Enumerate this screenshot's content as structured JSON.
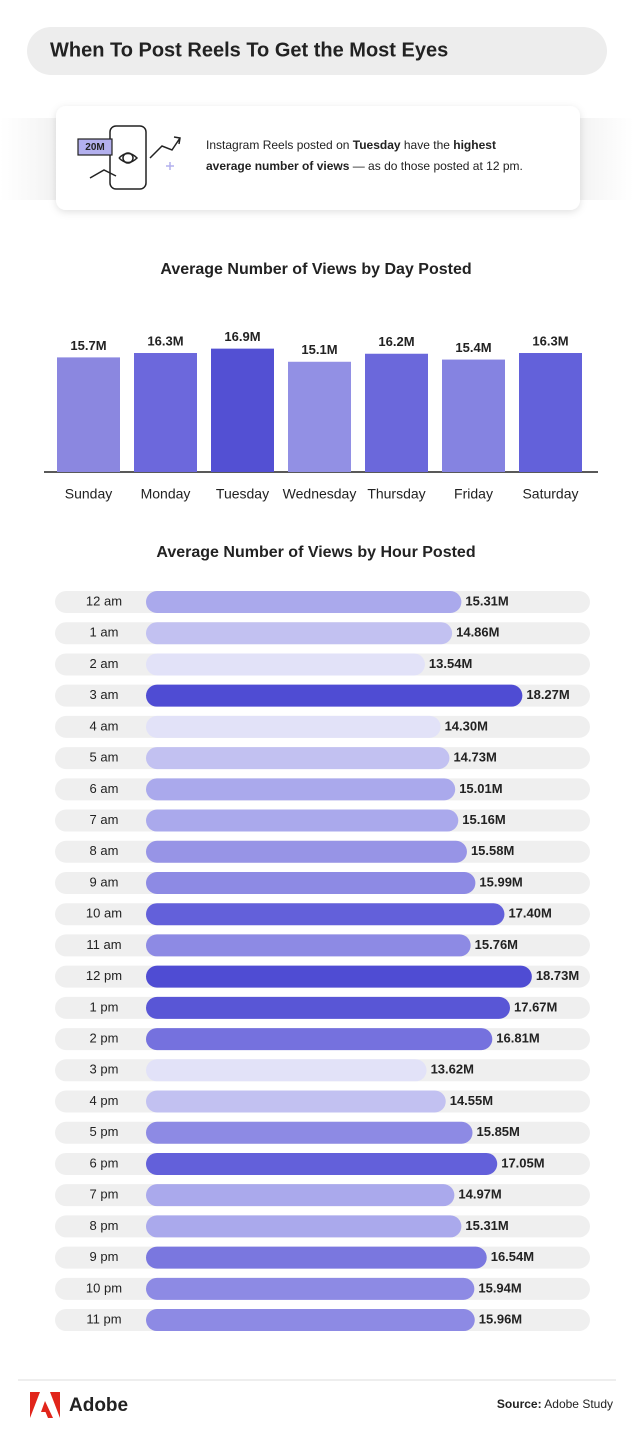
{
  "header": {
    "title": "When To Post Reels To Get the Most Eyes"
  },
  "callout": {
    "badge": "20M",
    "runs": [
      "Instagram Reels posted on ",
      "Tuesday",
      " have the ",
      "highest",
      "average number of views",
      " — as do those posted at 12 pm."
    ]
  },
  "chart_data": [
    {
      "type": "bar",
      "title": "Average Number of Views by Day Posted",
      "categories": [
        "Sunday",
        "Monday",
        "Tuesday",
        "Wednesday",
        "Thursday",
        "Friday",
        "Saturday"
      ],
      "values": [
        15.7,
        16.3,
        16.9,
        15.1,
        16.2,
        15.4,
        16.3
      ],
      "value_labels": [
        "15.7M",
        "16.3M",
        "16.9M",
        "15.1M",
        "16.2M",
        "15.4M",
        "16.3M"
      ],
      "colors": [
        "#8b87e0",
        "#6c68dc",
        "#5350d3",
        "#9290e4",
        "#6b68db",
        "#8583e1",
        "#6361da"
      ],
      "ylim": [
        0,
        20
      ]
    },
    {
      "type": "hbar",
      "title": "Average Number of Views by Hour Posted",
      "categories": [
        "12 am",
        "1 am",
        "2 am",
        "3 am",
        "4 am",
        "5 am",
        "6 am",
        "7 am",
        "8 am",
        "9 am",
        "10 am",
        "11 am",
        "12 pm",
        "1 pm",
        "2 pm",
        "3 pm",
        "4 pm",
        "5 pm",
        "6 pm",
        "7 pm",
        "8 pm",
        "9 pm",
        "10 pm",
        "11 pm"
      ],
      "values": [
        15.31,
        14.86,
        13.54,
        18.27,
        14.3,
        14.73,
        15.01,
        15.16,
        15.58,
        15.99,
        17.4,
        15.76,
        18.73,
        17.67,
        16.81,
        13.62,
        14.55,
        15.85,
        17.05,
        14.97,
        15.31,
        16.54,
        15.94,
        15.96
      ],
      "value_labels": [
        "15.31M",
        "14.86M",
        "13.54M",
        "18.27M",
        "14.30M",
        "14.73M",
        "15.01M",
        "15.16M",
        "15.58M",
        "15.99M",
        "17.40M",
        "15.76M",
        "18.73M",
        "17.67M",
        "16.81M",
        "13.62M",
        "14.55M",
        "15.85M",
        "17.05M",
        "14.97M",
        "15.31M",
        "16.54M",
        "15.94M",
        "15.96M"
      ],
      "colors": [
        "#aaa9ec",
        "#c2c1f1",
        "#e2e2f8",
        "#4f4cd3",
        "#e2e2f8",
        "#c2c1f1",
        "#aaa9ec",
        "#aaa9ec",
        "#9794e6",
        "#8d8ae4",
        "#6360da",
        "#8d8ae4",
        "#4f4cd3",
        "#5956d6",
        "#7571de",
        "#e2e2f8",
        "#c2c1f1",
        "#8d8ae4",
        "#6360da",
        "#aaa9ec",
        "#aaa9ec",
        "#7a77df",
        "#8d8ae4",
        "#8d8ae4"
      ],
      "xlim": [
        0,
        20
      ]
    }
  ],
  "footer": {
    "brand": "Adobe",
    "source_label": "Source:",
    "source": "Adobe Study"
  }
}
